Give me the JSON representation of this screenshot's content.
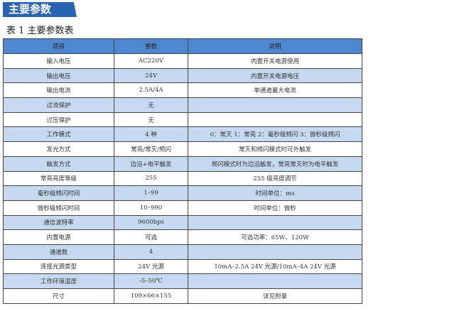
{
  "banner": "主要参数",
  "caption": "表 1  主要参数表",
  "headers": [
    "项目",
    "参数",
    "说明"
  ],
  "rows": [
    [
      "输入电压",
      "AC220V",
      "内置开关电源使用"
    ],
    [
      "输出电压",
      "24V",
      "内置开关电源电压"
    ],
    [
      "输出电流",
      "2.5A/4A",
      "单通道最大电流"
    ],
    [
      "过流保护",
      "无",
      ""
    ],
    [
      "过压保护",
      "无",
      ""
    ],
    [
      "工作模式",
      "4 种",
      "0：常灭  1：常亮  2：毫秒级频闪  3：微秒级频闪"
    ],
    [
      "发光方式",
      "常亮/常灭/频闪",
      "常灭和频闪模式时可外触发"
    ],
    [
      "触发方式",
      "边沿+电平触发",
      "频闪模式时为边沿触发，常亮常灭时为电平触发"
    ],
    [
      "常亮亮度等级",
      "255",
      "255 级亮度调节"
    ],
    [
      "毫秒级频闪时间",
      "1–99",
      "时间单位：ms"
    ],
    [
      "微秒级频闪时间",
      "10–990",
      "时间单位：微秒"
    ],
    [
      "通信波特率",
      "9600bps",
      ""
    ],
    [
      "内置电源",
      "可选",
      "可选功率：65W、120W"
    ],
    [
      "通道数",
      "4",
      ""
    ],
    [
      "连接光源类型",
      "24V 光源",
      "10mA–2.5A 24V 光源/10mA–4A 24V 光源"
    ],
    [
      "工作环境温度",
      "-5–50℃",
      ""
    ],
    [
      "尺寸",
      "109×66×155",
      "详见附录"
    ]
  ]
}
